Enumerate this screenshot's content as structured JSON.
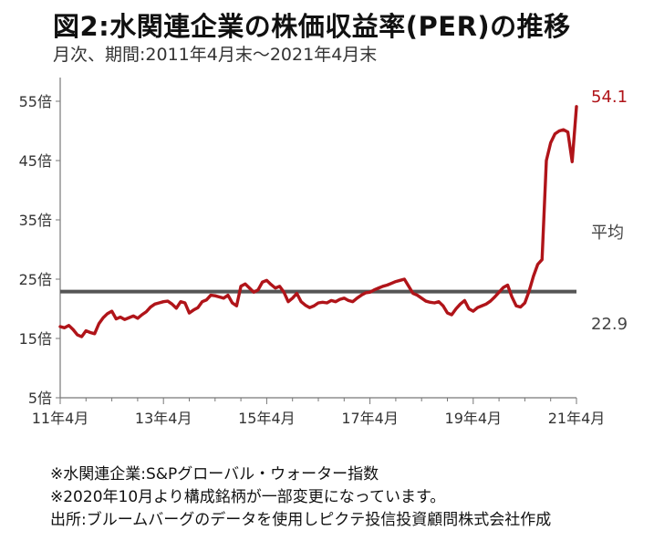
{
  "header": {
    "title": "図2:水関連企業の株価収益率(PER)の推移",
    "subtitle": "月次、期間:2011年4月末〜2021年4月末"
  },
  "notes": [
    "※水関連企業:S&Pグローバル・ウォーター指数",
    "※2020年10月より構成銘柄が一部変更になっています。",
    "出所:ブルームバーグのデータを使用しピクテ投信投資顧問株式会社作成"
  ],
  "colors": {
    "series": "#b01419",
    "average": "#555555",
    "end_label": "#b01419",
    "avg_label": "#444444"
  },
  "chart_data": {
    "type": "line",
    "title": "図2:水関連企業の株価収益率(PER)の推移",
    "xlabel": "",
    "ylabel": "",
    "xlim": [
      0,
      120
    ],
    "ylim": [
      5,
      59
    ],
    "y_ticks": [
      {
        "value": 5,
        "label": "5倍"
      },
      {
        "value": 15,
        "label": "15倍"
      },
      {
        "value": 25,
        "label": "25倍"
      },
      {
        "value": 35,
        "label": "35倍"
      },
      {
        "value": 45,
        "label": "45倍"
      },
      {
        "value": 55,
        "label": "55倍"
      }
    ],
    "x_ticks": [
      {
        "value": 0,
        "label": "11年4月"
      },
      {
        "value": 24,
        "label": "13年4月"
      },
      {
        "value": 48,
        "label": "15年4月"
      },
      {
        "value": 72,
        "label": "17年4月"
      },
      {
        "value": 96,
        "label": "19年4月"
      },
      {
        "value": 120,
        "label": "21年4月"
      }
    ],
    "grid": false,
    "series": [
      {
        "values": [
          17.0,
          16.8,
          17.2,
          16.5,
          15.6,
          15.3,
          16.3,
          16.0,
          15.8,
          17.5,
          18.5,
          19.2,
          19.6,
          18.3,
          18.6,
          18.2,
          18.5,
          18.8,
          18.4,
          19.0,
          19.5,
          20.3,
          20.8,
          21.0,
          21.2,
          21.3,
          20.8,
          20.1,
          21.2,
          21.0,
          19.3,
          19.8,
          20.2,
          21.2,
          21.5,
          22.3,
          22.2,
          22.0,
          21.8,
          22.3,
          21.0,
          20.5,
          23.8,
          24.2,
          23.5,
          22.8,
          23.2,
          24.5,
          24.8,
          24.1,
          23.5,
          23.8,
          22.8,
          21.2,
          21.8,
          22.6,
          21.2,
          20.6,
          20.2,
          20.5,
          21.0,
          21.1,
          21.0,
          21.4,
          21.2,
          21.6,
          21.8,
          21.4,
          21.2,
          21.8,
          22.3,
          22.7,
          22.8,
          23.2,
          23.5,
          23.8,
          24.0,
          24.3,
          24.6,
          24.8,
          25.0,
          23.8,
          22.6,
          22.3,
          21.8,
          21.3,
          21.1,
          21.0,
          21.2,
          20.5,
          19.3,
          19.0,
          20.0,
          20.8,
          21.4,
          20.0,
          19.6,
          20.2,
          20.5,
          20.8,
          21.3,
          22.0,
          22.8,
          23.6,
          24.0,
          22.0,
          20.5,
          20.3,
          21.0,
          23.0,
          25.5,
          27.5,
          28.3,
          45.0,
          48.0,
          49.5,
          50.0,
          50.2,
          49.8,
          44.8,
          54.1
        ]
      }
    ],
    "average": 22.9,
    "annotations": {
      "end_value": "54.1",
      "average_label": "平均",
      "average_value": "22.9"
    }
  }
}
